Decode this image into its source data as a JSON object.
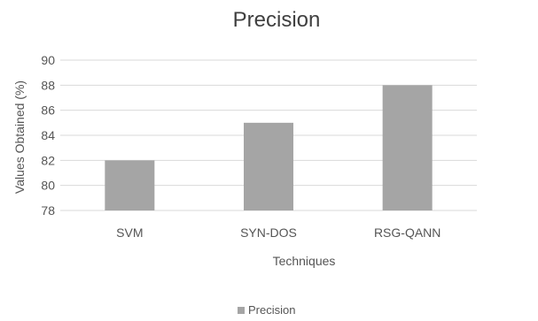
{
  "chart_data": {
    "type": "bar",
    "title": "Precision",
    "xlabel": "Techniques",
    "ylabel": "Values Obtained (%)",
    "categories": [
      "SVM",
      "SYN-DOS",
      "RSG-QANN"
    ],
    "series": [
      {
        "name": "Precision",
        "values": [
          82,
          85,
          88
        ],
        "color": "#a5a5a5"
      }
    ],
    "ylim": [
      78,
      90
    ],
    "yticks": [
      "78",
      "80",
      "82",
      "84",
      "86",
      "88",
      "90"
    ],
    "grid": true,
    "legend": "bottom"
  }
}
